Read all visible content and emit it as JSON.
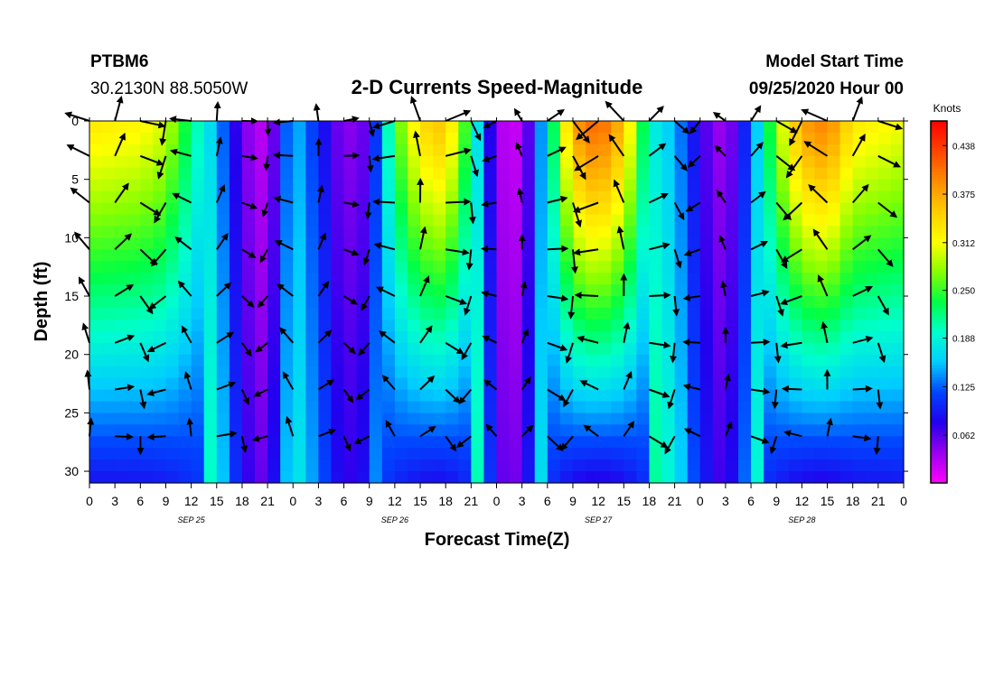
{
  "header": {
    "station_id": "PTBM6",
    "station_location": "30.2130N 88.5050W",
    "plot_title": "2-D Currents Speed-Magnitude",
    "model_label": "Model Start Time",
    "model_time": "09/25/2020 Hour 00"
  },
  "chart_data": {
    "type": "heatmap",
    "title": "2-D Currents Speed-Magnitude",
    "xlabel": "Forecast Time(Z)",
    "ylabel": "Depth (ft)",
    "colorbar_label": "Knots",
    "x_ticks": [
      "0",
      "3",
      "6",
      "9",
      "12",
      "15",
      "18",
      "21",
      "0",
      "3",
      "6",
      "9",
      "12",
      "15",
      "18",
      "21",
      "0",
      "3",
      "6",
      "9",
      "12",
      "15",
      "18",
      "21",
      "0",
      "3",
      "6",
      "9",
      "12",
      "15",
      "18",
      "21",
      "0"
    ],
    "date_labels": [
      {
        "label": "SEP 25",
        "hour": 12
      },
      {
        "label": "SEP 26",
        "hour": 36
      },
      {
        "label": "SEP 27",
        "hour": 60
      },
      {
        "label": "SEP 28",
        "hour": 84
      }
    ],
    "xlim_hours": [
      0,
      96
    ],
    "ylim_ft": [
      0,
      31
    ],
    "y_ticks": [
      "0",
      "5",
      "10",
      "15",
      "20",
      "25",
      "30"
    ],
    "colorbar_ticks": [
      "0.062",
      "0.125",
      "0.188",
      "0.250",
      "0.312",
      "0.375",
      "0.438"
    ],
    "colorbar_range": [
      0,
      0.47
    ],
    "colormap": [
      "#ff00ff",
      "#9900ee",
      "#2200ee",
      "#0044ff",
      "#00ccff",
      "#00ffcc",
      "#00ff44",
      "#88ff00",
      "#ffff00",
      "#ffcc00",
      "#ff8c00",
      "#ff4400",
      "#ff0000"
    ],
    "vector_color": "#000000",
    "grid": false,
    "depth_levels_ft": [
      0,
      3,
      7,
      11,
      15,
      19,
      23,
      27
    ],
    "surface_speed_by_hour": [
      {
        "hour": 0,
        "knots": 0.33
      },
      {
        "hour": 6,
        "knots": 0.32
      },
      {
        "hour": 9,
        "knots": 0.3
      },
      {
        "hour": 12,
        "knots": 0.22
      },
      {
        "hour": 15,
        "knots": 0.15
      },
      {
        "hour": 18,
        "knots": 0.05
      },
      {
        "hour": 21,
        "knots": 0.02
      },
      {
        "hour": 24,
        "knots": 0.16
      },
      {
        "hour": 27,
        "knots": 0.1
      },
      {
        "hour": 30,
        "knots": 0.04
      },
      {
        "hour": 33,
        "knots": 0.06
      },
      {
        "hour": 36,
        "knots": 0.25
      },
      {
        "hour": 39,
        "knots": 0.34
      },
      {
        "hour": 42,
        "knots": 0.36
      },
      {
        "hour": 45,
        "knots": 0.22
      },
      {
        "hour": 48,
        "knots": 0.03
      },
      {
        "hour": 51,
        "knots": 0.02
      },
      {
        "hour": 54,
        "knots": 0.18
      },
      {
        "hour": 57,
        "knots": 0.38
      },
      {
        "hour": 60,
        "knots": 0.42
      },
      {
        "hour": 63,
        "knots": 0.36
      },
      {
        "hour": 66,
        "knots": 0.19
      },
      {
        "hour": 69,
        "knots": 0.15
      },
      {
        "hour": 72,
        "knots": 0.07
      },
      {
        "hour": 75,
        "knots": 0.03
      },
      {
        "hour": 78,
        "knots": 0.12
      },
      {
        "hour": 81,
        "knots": 0.28
      },
      {
        "hour": 84,
        "knots": 0.38
      },
      {
        "hour": 87,
        "knots": 0.4
      },
      {
        "hour": 90,
        "knots": 0.33
      },
      {
        "hour": 93,
        "knots": 0.32
      },
      {
        "hour": 96,
        "knots": 0.31
      }
    ]
  }
}
